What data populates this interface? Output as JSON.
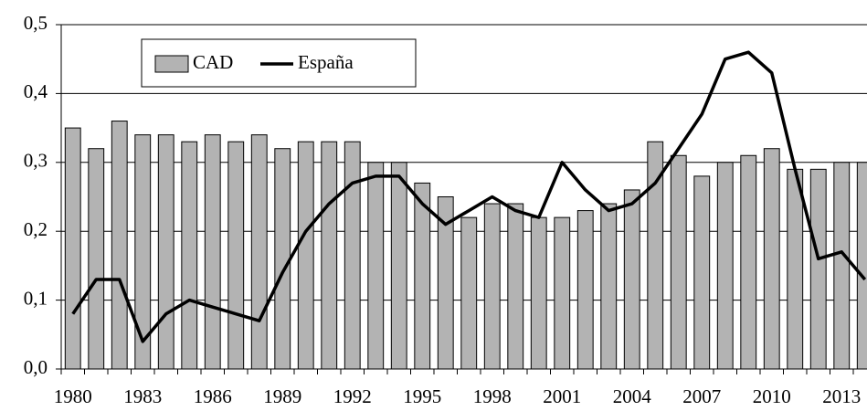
{
  "chart_data": {
    "type": "bar-line",
    "categories": [
      "1980",
      null,
      null,
      "1983",
      null,
      null,
      "1986",
      null,
      null,
      "1989",
      null,
      null,
      "1992",
      null,
      null,
      "1995",
      null,
      null,
      "1998",
      null,
      null,
      "2001",
      null,
      null,
      "2004",
      null,
      null,
      "2007",
      null,
      null,
      "2010",
      null,
      null,
      "2013",
      null
    ],
    "series": [
      {
        "name": "CAD",
        "type": "bar",
        "color": "#b3b3b3",
        "values": [
          0.35,
          0.32,
          0.36,
          0.34,
          0.34,
          0.33,
          0.34,
          0.33,
          0.34,
          0.32,
          0.33,
          0.33,
          0.33,
          0.3,
          0.3,
          0.27,
          0.25,
          0.22,
          0.24,
          0.24,
          0.22,
          0.22,
          0.23,
          0.24,
          0.26,
          0.33,
          0.31,
          0.28,
          0.3,
          0.31,
          0.32,
          0.29,
          0.29,
          0.3,
          0.3
        ]
      },
      {
        "name": "España",
        "type": "line",
        "color": "#000000",
        "values": [
          0.08,
          0.13,
          0.13,
          0.04,
          0.08,
          0.1,
          0.09,
          0.08,
          0.07,
          0.14,
          0.2,
          0.24,
          0.27,
          0.28,
          0.28,
          0.24,
          0.21,
          0.23,
          0.25,
          0.23,
          0.22,
          0.3,
          0.26,
          0.23,
          0.24,
          0.27,
          0.32,
          0.37,
          0.45,
          0.46,
          0.43,
          0.29,
          0.16,
          0.17,
          0.13
        ]
      }
    ],
    "ylim": [
      0,
      0.5
    ],
    "yticks": [
      {
        "value": 0,
        "label": "0,0"
      },
      {
        "value": 0.1,
        "label": "0,1"
      },
      {
        "value": 0.2,
        "label": "0,2"
      },
      {
        "value": 0.3,
        "label": "0,3"
      },
      {
        "value": 0.4,
        "label": "0,4"
      },
      {
        "value": 0.5,
        "label": "0,5"
      }
    ],
    "grid": true,
    "legend": "top-left"
  }
}
